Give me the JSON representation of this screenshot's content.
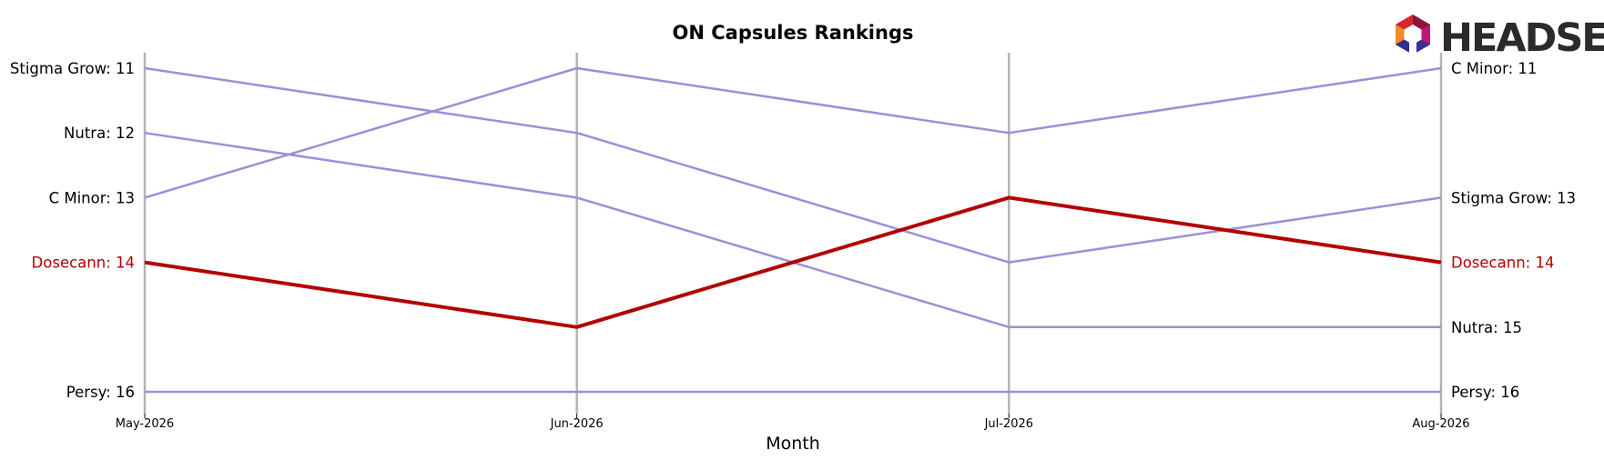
{
  "chart_data": {
    "type": "line",
    "title": "ON Capsules Rankings",
    "xlabel": "Month",
    "ylabel": "",
    "categories": [
      "May-2026",
      "Jun-2026",
      "Jul-2026",
      "Aug-2026"
    ],
    "y_inverted": true,
    "ylim": [
      10.2,
      16.2
    ],
    "grid": "vertical",
    "highlight_color": "#b30000",
    "series_color": "#9b90d6",
    "series": [
      {
        "name": "Stigma Grow",
        "values": [
          11,
          12,
          14,
          13
        ],
        "highlight": false
      },
      {
        "name": "Nutra",
        "values": [
          12,
          13,
          15,
          15
        ],
        "highlight": false
      },
      {
        "name": "C Minor",
        "values": [
          13,
          11,
          12,
          11
        ],
        "highlight": false
      },
      {
        "name": "Dosecann",
        "values": [
          14,
          15,
          13,
          14
        ],
        "highlight": true
      },
      {
        "name": "Persy",
        "values": [
          16,
          16,
          16,
          16
        ],
        "highlight": false
      }
    ],
    "start_labels": [
      "Stigma Grow: 11",
      "Nutra: 12",
      "C Minor: 13",
      "Dosecann: 14",
      "Persy: 16"
    ],
    "end_labels": [
      "Stigma Grow: 13",
      "Nutra: 15",
      "C Minor: 11",
      "Dosecann: 14",
      "Persy: 16"
    ]
  },
  "brand": {
    "name": "HEADSET",
    "logo_icon": "headset-hexagon-logo"
  }
}
